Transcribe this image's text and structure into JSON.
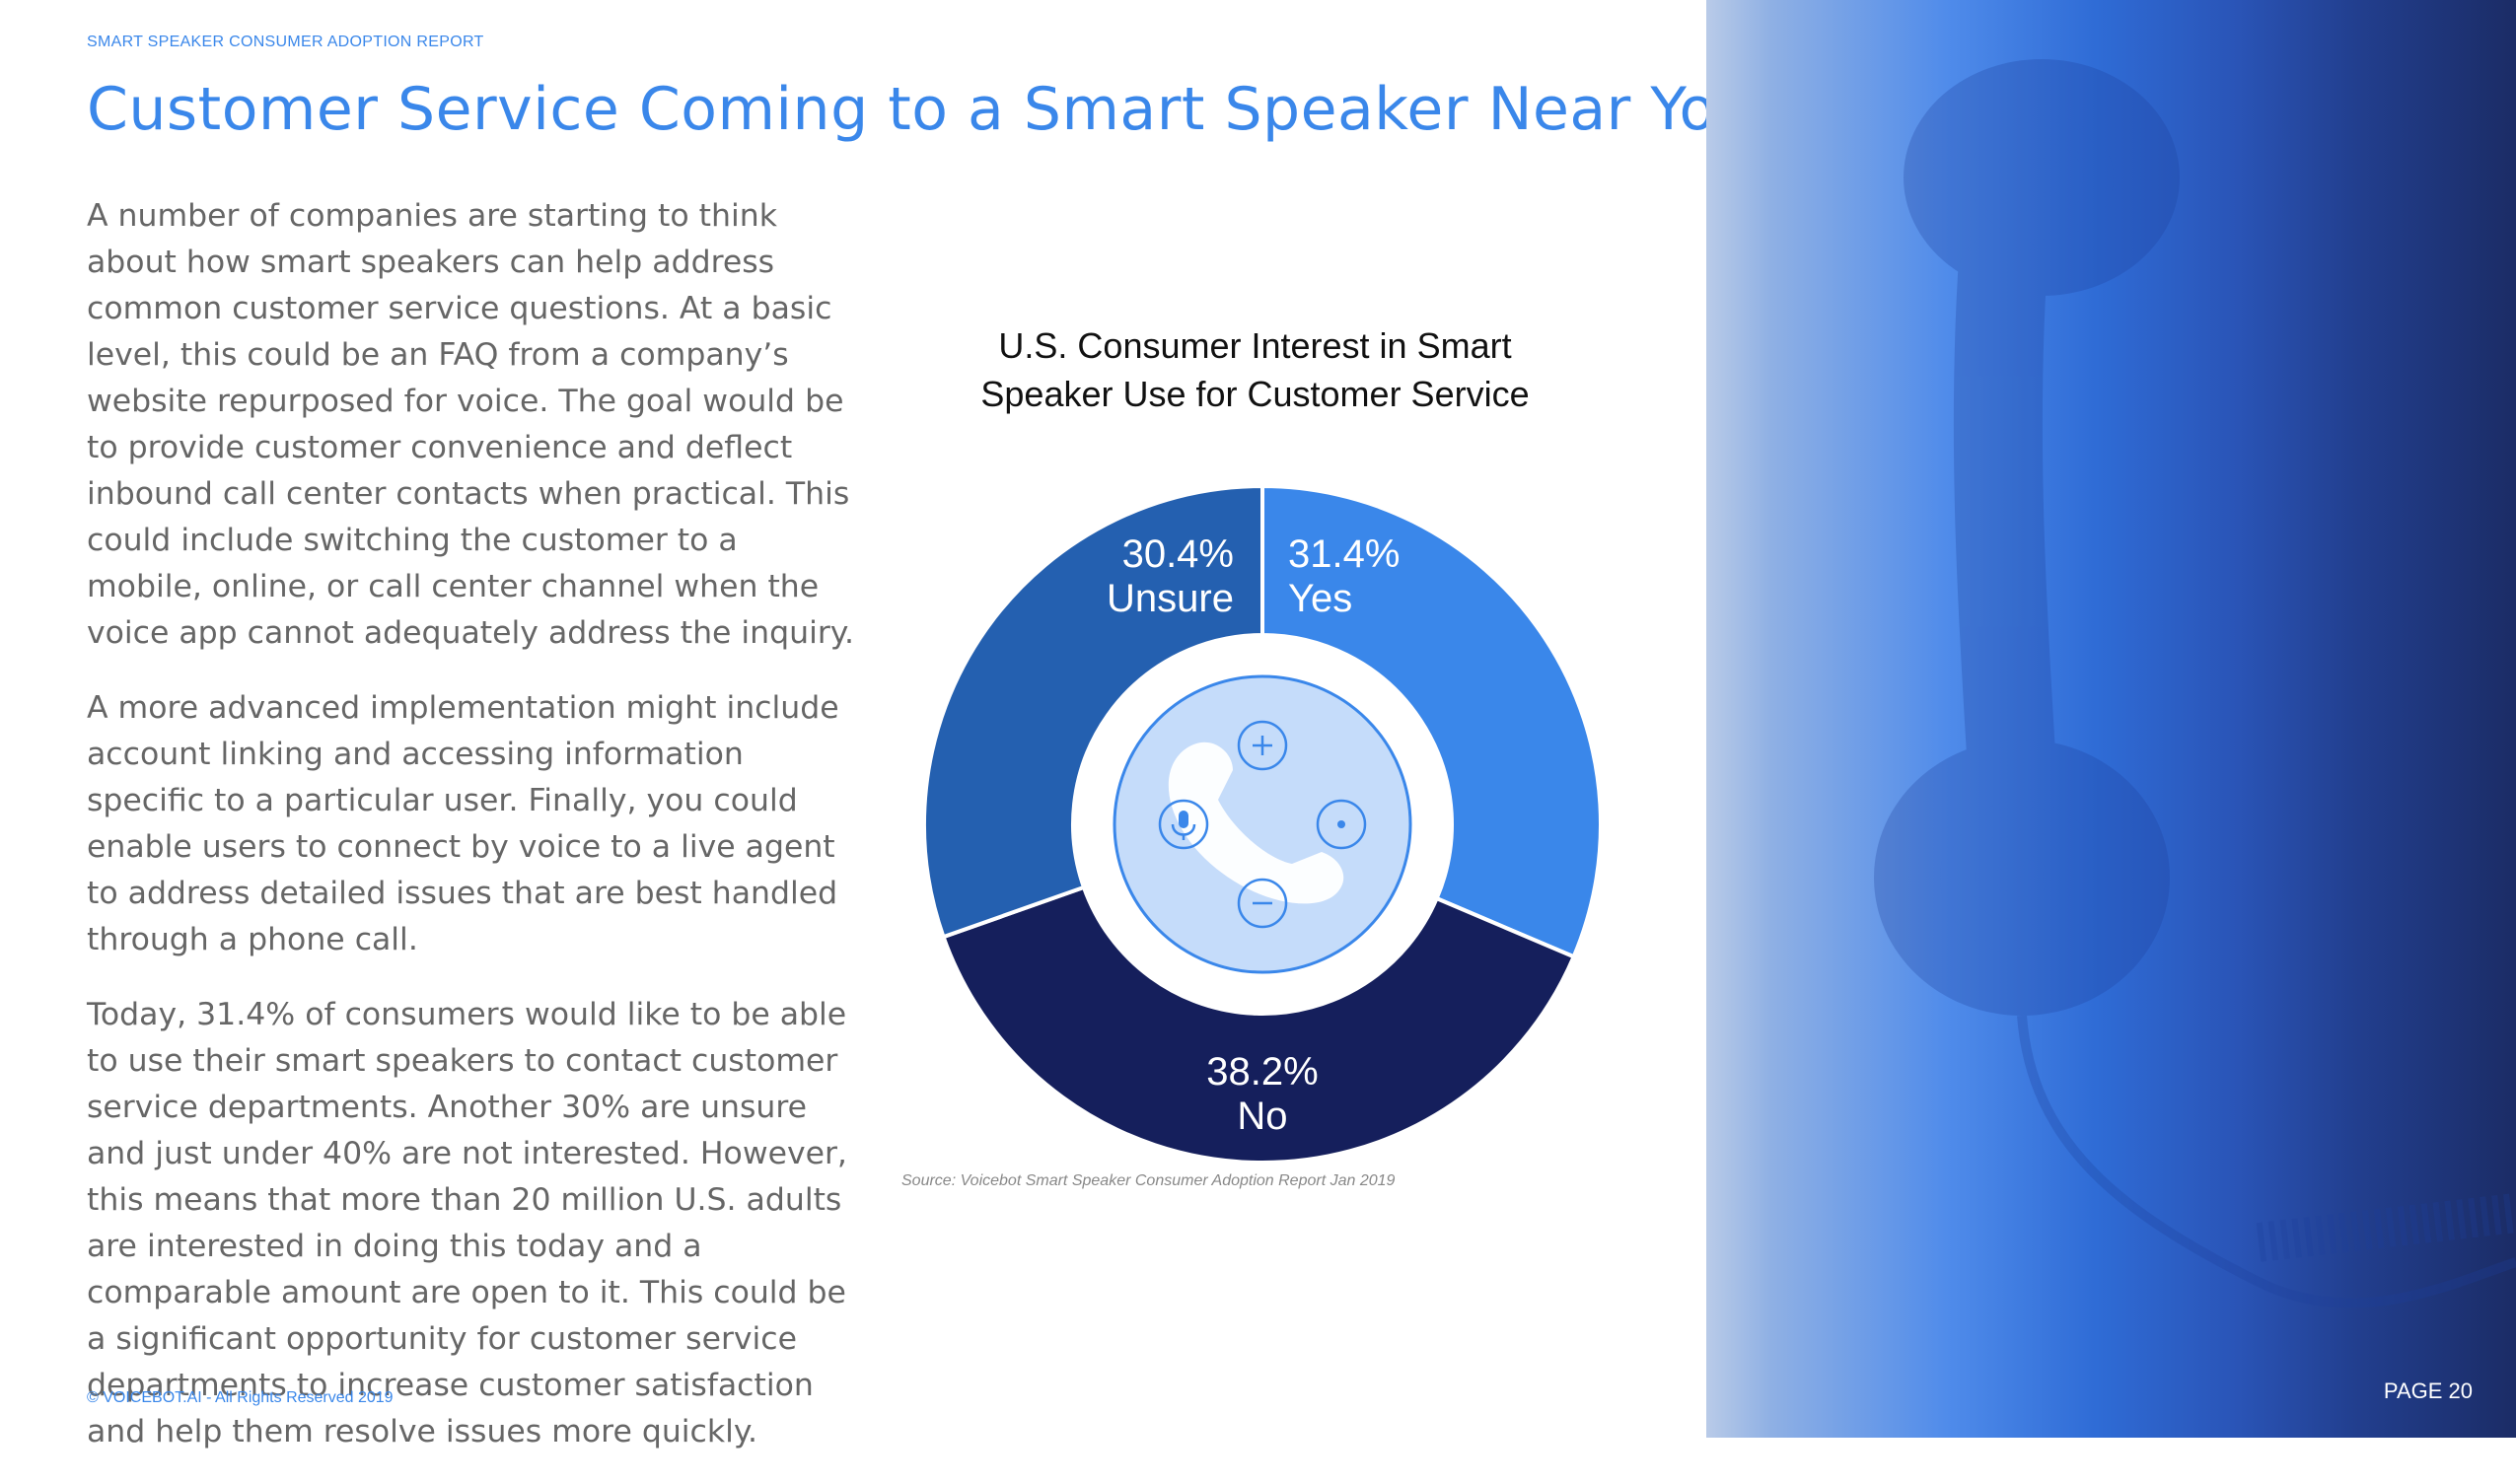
{
  "header": {
    "report_label": "SMART SPEAKER CONSUMER ADOPTION REPORT",
    "title": "Customer Service Coming to a Smart Speaker Near You?"
  },
  "body": {
    "paragraphs": [
      "A number of companies are starting to think about how smart speakers can help address common customer service questions. At a basic level, this could be an FAQ from a company’s website repurposed for voice. The goal would be to provide customer convenience and deflect inbound call center contacts when practical. This could include switching the customer to a mobile, online, or call center channel when the voice app cannot adequately address the inquiry.",
      "A more advanced implementation might include account linking and accessing information specific to a particular user. Finally, you could enable users to connect by voice to a live agent to address detailed issues that are best handled through a phone call.",
      "Today, 31.4% of consumers would like to be able to use their smart speakers to contact customer service departments. Another 30% are unsure and just under 40% are not interested. However, this means that more than 20 million U.S. adults are interested in doing this today and a comparable amount are open to it. This could be a significant opportunity for customer service departments to increase customer satisfaction and help them resolve issues more quickly."
    ]
  },
  "chart_data": {
    "type": "pie",
    "variant": "donut",
    "title": "U.S. Consumer Interest in Smart Speaker Use for Customer Service",
    "title_lines": [
      "U.S. Consumer Interest in Smart",
      "Speaker Use for Customer Service"
    ],
    "slices": [
      {
        "label": "Yes",
        "value": 31.4,
        "value_label": "31.4%",
        "color": "#3a87ea"
      },
      {
        "label": "No",
        "value": 38.2,
        "value_label": "38.2%",
        "color": "#151f5c"
      },
      {
        "label": "Unsure",
        "value": 30.4,
        "value_label": "30.4%",
        "color": "#2460b0"
      }
    ],
    "center_icon": "smart-speaker-phone-icon",
    "source": "Source: Voicebot Smart Speaker Consumer Adoption Report Jan 2019"
  },
  "footer": {
    "copyright": "© VOICEBOT.AI - All Rights Reserved 2019",
    "page_number": "PAGE 20"
  },
  "side_image": {
    "icon": "telephone-handset-icon",
    "colors": [
      "#b9cbe8",
      "#4f8bea",
      "#2a55b8",
      "#1b2c66"
    ]
  }
}
